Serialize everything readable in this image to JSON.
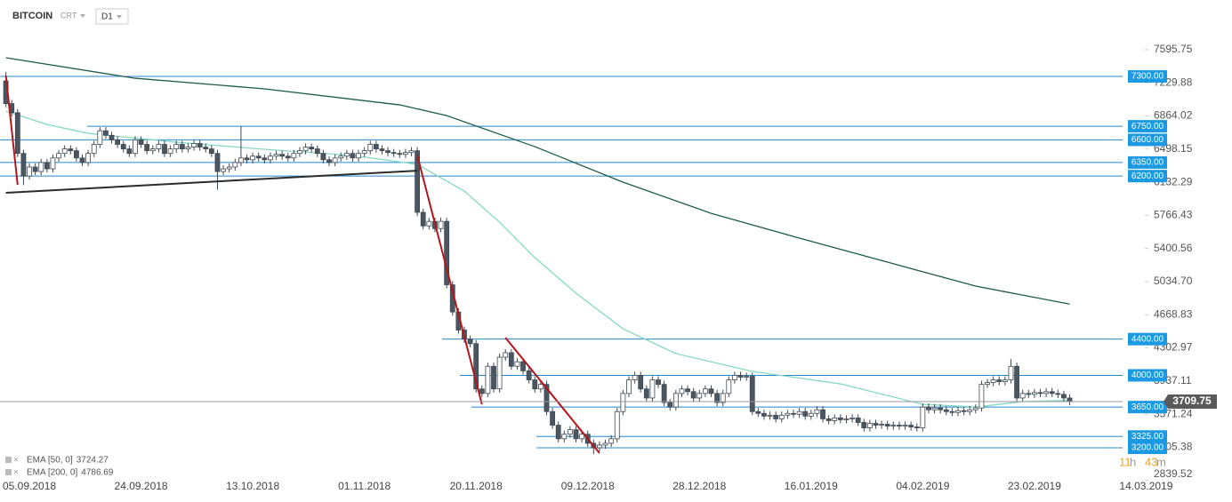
{
  "header": {
    "symbol": "BITCOIN",
    "account": "CRT",
    "timeframe": "D1"
  },
  "chart_data": {
    "type": "candlestick",
    "x": [
      "01.09.2018",
      "02.09.2018",
      "03.09.2018",
      "04.09.2018",
      "05.09.2018",
      "06.09.2018",
      "07.09.2018",
      "08.09.2018",
      "09.09.2018",
      "10.09.2018",
      "11.09.2018",
      "12.09.2018",
      "13.09.2018",
      "14.09.2018",
      "15.09.2018",
      "16.09.2018",
      "17.09.2018",
      "18.09.2018",
      "19.09.2018",
      "20.09.2018",
      "21.09.2018",
      "22.09.2018",
      "23.09.2018",
      "24.09.2018",
      "25.09.2018",
      "26.09.2018",
      "27.09.2018",
      "28.09.2018",
      "29.09.2018",
      "30.09.2018",
      "01.10.2018",
      "02.10.2018",
      "03.10.2018",
      "04.10.2018",
      "05.10.2018",
      "06.10.2018",
      "07.10.2018",
      "08.10.2018",
      "09.10.2018",
      "10.10.2018",
      "11.10.2018",
      "12.10.2018",
      "13.10.2018",
      "14.10.2018",
      "15.10.2018",
      "16.10.2018",
      "17.10.2018",
      "18.10.2018",
      "19.10.2018",
      "20.10.2018",
      "21.10.2018",
      "22.10.2018",
      "23.10.2018",
      "24.10.2018",
      "25.10.2018",
      "26.10.2018",
      "27.10.2018",
      "28.10.2018",
      "29.10.2018",
      "30.10.2018",
      "31.10.2018",
      "01.11.2018",
      "02.11.2018",
      "03.11.2018",
      "04.11.2018",
      "05.11.2018",
      "06.11.2018",
      "07.11.2018",
      "08.11.2018",
      "09.11.2018",
      "10.11.2018",
      "11.11.2018",
      "12.11.2018",
      "13.11.2018",
      "14.11.2018",
      "15.11.2018",
      "16.11.2018",
      "17.11.2018",
      "18.11.2018",
      "19.11.2018",
      "20.11.2018",
      "21.11.2018",
      "22.11.2018",
      "23.11.2018",
      "24.11.2018",
      "25.11.2018",
      "26.11.2018",
      "27.11.2018",
      "28.11.2018",
      "29.11.2018",
      "30.11.2018",
      "01.12.2018",
      "02.12.2018",
      "03.12.2018",
      "04.12.2018",
      "05.12.2018",
      "06.12.2018",
      "07.12.2018",
      "08.12.2018",
      "09.12.2018",
      "10.12.2018",
      "11.12.2018",
      "12.12.2018",
      "13.12.2018",
      "14.12.2018",
      "15.12.2018",
      "16.12.2018",
      "17.12.2018",
      "18.12.2018",
      "19.12.2018",
      "20.12.2018",
      "21.12.2018",
      "22.12.2018",
      "23.12.2018",
      "24.12.2018",
      "25.12.2018",
      "26.12.2018",
      "27.12.2018",
      "28.12.2018",
      "29.12.2018",
      "30.12.2018",
      "31.12.2018",
      "01.01.2019",
      "02.01.2019",
      "03.01.2019",
      "04.01.2019",
      "05.01.2019",
      "06.01.2019",
      "07.01.2019",
      "08.01.2019",
      "09.01.2019",
      "10.01.2019",
      "11.01.2019",
      "12.01.2019",
      "13.01.2019",
      "14.01.2019",
      "15.01.2019",
      "16.01.2019",
      "17.01.2019",
      "18.01.2019",
      "19.01.2019",
      "20.01.2019",
      "21.01.2019",
      "22.01.2019",
      "23.01.2019",
      "24.01.2019",
      "25.01.2019",
      "26.01.2019",
      "27.01.2019",
      "28.01.2019",
      "29.01.2019",
      "30.01.2019",
      "31.01.2019",
      "01.02.2019",
      "02.02.2019",
      "03.02.2019",
      "04.02.2019",
      "05.02.2019",
      "06.02.2019",
      "07.02.2019",
      "08.02.2019",
      "09.02.2019",
      "10.02.2019",
      "11.02.2019",
      "12.02.2019",
      "13.02.2019",
      "14.02.2019",
      "15.02.2019",
      "16.02.2019",
      "17.02.2019",
      "18.02.2019",
      "19.02.2019",
      "20.02.2019",
      "21.02.2019",
      "22.02.2019",
      "23.02.2019",
      "24.02.2019",
      "25.02.2019",
      "26.02.2019",
      "27.02.2019",
      "28.02.2019",
      "01.03.2019"
    ],
    "open": [
      7250,
      7000,
      6900,
      6450,
      6200,
      6300,
      6250,
      6350,
      6280,
      6400,
      6450,
      6500,
      6480,
      6400,
      6350,
      6450,
      6550,
      6700,
      6650,
      6600,
      6550,
      6500,
      6450,
      6600,
      6550,
      6480,
      6500,
      6550,
      6450,
      6500,
      6550,
      6500,
      6520,
      6560,
      6520,
      6500,
      6450,
      6250,
      6280,
      6300,
      6350,
      6400,
      6380,
      6420,
      6400,
      6380,
      6420,
      6440,
      6420,
      6400,
      6450,
      6480,
      6520,
      6500,
      6450,
      6380,
      6350,
      6400,
      6420,
      6450,
      6400,
      6450,
      6480,
      6550,
      6500,
      6480,
      6460,
      6450,
      6440,
      6460,
      6480,
      5800,
      5650,
      5700,
      5620,
      5700,
      5000,
      4700,
      4500,
      4400,
      4350,
      3850,
      3800,
      4100,
      3850,
      4200,
      4250,
      4100,
      4150,
      4050,
      3950,
      3850,
      3900,
      3600,
      3450,
      3300,
      3350,
      3400,
      3300,
      3350,
      3250,
      3200,
      3230,
      3250,
      3300,
      3600,
      3800,
      3950,
      4000,
      3850,
      3750,
      3950,
      3900,
      3700,
      3650,
      3800,
      3850,
      3820,
      3750,
      3800,
      3850,
      3800,
      3700,
      3800,
      3950,
      4000,
      3980,
      3990,
      3600,
      3580,
      3550,
      3560,
      3520,
      3560,
      3580,
      3570,
      3600,
      3550,
      3580,
      3620,
      3520,
      3500,
      3530,
      3510,
      3520,
      3530,
      3480,
      3420,
      3470,
      3450,
      3460,
      3440,
      3450,
      3440,
      3450,
      3430,
      3420,
      3650,
      3620,
      3640,
      3620,
      3600,
      3590,
      3610,
      3600,
      3620,
      3640,
      3900,
      3920,
      3950,
      3930,
      3950,
      4100,
      3750,
      3800,
      3790,
      3810,
      3800,
      3820,
      3800,
      3790,
      3750
    ],
    "high": [
      7350,
      7040,
      6940,
      6490,
      6340,
      6340,
      6390,
      6390,
      6440,
      6490,
      6540,
      6540,
      6520,
      6440,
      6490,
      6590,
      6740,
      6740,
      6690,
      6640,
      6590,
      6540,
      6640,
      6640,
      6590,
      6540,
      6590,
      6590,
      6540,
      6590,
      6590,
      6560,
      6600,
      6600,
      6560,
      6540,
      6490,
      6320,
      6340,
      6390,
      6750,
      6440,
      6460,
      6460,
      6440,
      6460,
      6480,
      6480,
      6460,
      6490,
      6520,
      6560,
      6560,
      6540,
      6490,
      6420,
      6440,
      6460,
      6490,
      6490,
      6490,
      6520,
      6590,
      6590,
      6540,
      6520,
      6500,
      6490,
      6500,
      6520,
      6520,
      5840,
      5740,
      5740,
      5740,
      5740,
      5040,
      4740,
      4540,
      4440,
      4390,
      3890,
      4140,
      4140,
      4240,
      4290,
      4290,
      4190,
      4190,
      4090,
      3990,
      3940,
      3940,
      3640,
      3490,
      3390,
      3440,
      3440,
      3390,
      3390,
      3290,
      3270,
      3290,
      3340,
      3640,
      3840,
      3990,
      4040,
      4040,
      3890,
      3990,
      3990,
      3940,
      3740,
      3840,
      3890,
      3890,
      3860,
      3840,
      3890,
      3890,
      3840,
      3840,
      3990,
      4040,
      4040,
      4030,
      4030,
      3640,
      3620,
      3600,
      3600,
      3600,
      3620,
      3620,
      3640,
      3640,
      3620,
      3660,
      3660,
      3560,
      3570,
      3570,
      3560,
      3570,
      3570,
      3520,
      3510,
      3510,
      3500,
      3500,
      3490,
      3490,
      3490,
      3490,
      3470,
      3690,
      3690,
      3680,
      3680,
      3660,
      3640,
      3650,
      3650,
      3660,
      3680,
      3940,
      3960,
      3990,
      3990,
      3990,
      4180,
      4140,
      3840,
      3840,
      3850,
      3850,
      3860,
      3860,
      3840,
      3830,
      3790
    ],
    "low": [
      6960,
      6860,
      6410,
      6100,
      6160,
      6210,
      6210,
      6240,
      6240,
      6360,
      6410,
      6440,
      6360,
      6310,
      6310,
      6410,
      6510,
      6610,
      6560,
      6510,
      6460,
      6410,
      6410,
      6510,
      6440,
      6440,
      6460,
      6410,
      6410,
      6460,
      6460,
      6460,
      6480,
      6480,
      6460,
      6410,
      6050,
      6210,
      6240,
      6260,
      6310,
      6340,
      6340,
      6360,
      6340,
      6340,
      6380,
      6380,
      6360,
      6360,
      6410,
      6440,
      6460,
      6410,
      6340,
      6310,
      6310,
      6360,
      6380,
      6360,
      6360,
      6410,
      6440,
      6460,
      6440,
      6420,
      6410,
      6400,
      6400,
      6420,
      5760,
      5610,
      5610,
      5580,
      5580,
      4960,
      4660,
      4460,
      4360,
      4310,
      3810,
      3760,
      3760,
      3810,
      3810,
      4160,
      4060,
      4060,
      4010,
      3910,
      3810,
      3810,
      3560,
      3410,
      3260,
      3260,
      3310,
      3260,
      3260,
      3210,
      3130,
      3160,
      3190,
      3210,
      3260,
      3560,
      3760,
      3910,
      3810,
      3710,
      3710,
      3860,
      3660,
      3610,
      3610,
      3760,
      3780,
      3710,
      3710,
      3760,
      3760,
      3660,
      3660,
      3760,
      3910,
      3940,
      3940,
      3560,
      3540,
      3510,
      3510,
      3480,
      3480,
      3520,
      3530,
      3530,
      3510,
      3510,
      3540,
      3480,
      3460,
      3460,
      3470,
      3470,
      3480,
      3440,
      3380,
      3380,
      3410,
      3410,
      3400,
      3400,
      3400,
      3400,
      3390,
      3380,
      3380,
      3580,
      3580,
      3580,
      3560,
      3550,
      3550,
      3560,
      3560,
      3580,
      3600,
      3860,
      3880,
      3890,
      3890,
      3910,
      3710,
      3710,
      3750,
      3750,
      3760,
      3760,
      3760,
      3750,
      3710,
      3670
    ],
    "close": [
      7000,
      6900,
      6450,
      6200,
      6300,
      6250,
      6350,
      6280,
      6400,
      6450,
      6500,
      6480,
      6400,
      6350,
      6450,
      6550,
      6700,
      6650,
      6600,
      6550,
      6500,
      6450,
      6600,
      6550,
      6480,
      6500,
      6550,
      6450,
      6500,
      6550,
      6500,
      6520,
      6560,
      6520,
      6500,
      6450,
      6250,
      6280,
      6300,
      6350,
      6400,
      6380,
      6420,
      6400,
      6380,
      6420,
      6440,
      6420,
      6400,
      6450,
      6480,
      6520,
      6500,
      6450,
      6380,
      6350,
      6400,
      6420,
      6450,
      6400,
      6450,
      6480,
      6550,
      6500,
      6480,
      6460,
      6450,
      6440,
      6460,
      6480,
      5800,
      5650,
      5700,
      5620,
      5700,
      5000,
      4700,
      4500,
      4400,
      4350,
      3850,
      3800,
      4100,
      3850,
      4200,
      4250,
      4100,
      4150,
      4050,
      3950,
      3850,
      3900,
      3600,
      3450,
      3300,
      3350,
      3400,
      3300,
      3350,
      3250,
      3200,
      3230,
      3250,
      3300,
      3600,
      3800,
      3950,
      4000,
      3850,
      3750,
      3950,
      3900,
      3700,
      3650,
      3800,
      3850,
      3820,
      3750,
      3800,
      3850,
      3800,
      3700,
      3800,
      3950,
      4000,
      3980,
      3990,
      3600,
      3580,
      3550,
      3560,
      3520,
      3560,
      3580,
      3570,
      3600,
      3550,
      3580,
      3620,
      3520,
      3500,
      3530,
      3510,
      3520,
      3530,
      3480,
      3420,
      3470,
      3450,
      3460,
      3440,
      3450,
      3440,
      3450,
      3430,
      3420,
      3650,
      3620,
      3640,
      3620,
      3600,
      3590,
      3610,
      3600,
      3620,
      3640,
      3900,
      3920,
      3950,
      3930,
      3950,
      4100,
      3750,
      3800,
      3790,
      3810,
      3800,
      3820,
      3800,
      3790,
      3750,
      3710
    ],
    "up_color": "#ffffff",
    "down_color": "#4b5661",
    "edge_color": "#3d4852",
    "xlim": [
      "31.08.2018",
      "10.03.2019"
    ],
    "xticks": [
      "05.09.2018",
      "24.09.2018",
      "13.10.2018",
      "01.11.2018",
      "20.11.2018",
      "09.12.2018",
      "28.12.2018",
      "16.01.2019",
      "04.02.2019",
      "23.02.2019",
      "14.03.2019"
    ],
    "ylim": [
      2798,
      8144
    ],
    "yticks": [
      7595.75,
      7229.88,
      6864.02,
      6498.15,
      6132.29,
      5766.43,
      5400.56,
      {
        "value": 5034.7,
        "label": "5034.70"
      },
      4668.83,
      4302.97,
      3937.11,
      3571.24,
      3205.38,
      2839.52
    ],
    "series": [
      {
        "name": "EMA [50, 0]",
        "legend_value": 3724.27,
        "color": "#86d8c4",
        "x": [
          "01.09.2018",
          "08.09.2018",
          "15.09.2018",
          "30.09.2018",
          "15.10.2018",
          "30.10.2018",
          "10.11.2018",
          "18.11.2018",
          "24.11.2018",
          "30.11.2018",
          "07.12.2018",
          "15.12.2018",
          "24.12.2018",
          "06.01.2019",
          "21.01.2019",
          "04.02.2019",
          "13.02.2019",
          "21.02.2019",
          "01.03.2019"
        ],
        "values": [
          6917,
          6770,
          6672,
          6574,
          6496,
          6427,
          6329,
          6035,
          5691,
          5299,
          4907,
          4514,
          4240,
          4044,
          3906,
          3680,
          3651,
          3710,
          3724
        ]
      },
      {
        "name": "EMA [200, 0]",
        "legend_value": 4786.69,
        "color": "#1e5c48",
        "x": [
          "01.09.2018",
          "23.09.2018",
          "15.10.2018",
          "07.11.2018",
          "15.11.2018",
          "30.11.2018",
          "15.12.2018",
          "30.12.2018",
          "14.01.2019",
          "29.01.2019",
          "13.02.2019",
          "01.03.2019"
        ],
        "values": [
          7506,
          7280,
          7163,
          6986,
          6868,
          6525,
          6133,
          5789,
          5515,
          5250,
          4985,
          4787
        ]
      }
    ],
    "levels": [
      {
        "value": 7300,
        "label": "7300.00"
      },
      {
        "value": 6750,
        "label": "6750.00"
      },
      {
        "value": 6600,
        "label": "6600.00"
      },
      {
        "value": 6350,
        "label": "6350.00"
      },
      {
        "value": 6200,
        "label": "6200.00"
      },
      {
        "value": 4400,
        "label": "4400.00"
      },
      {
        "value": 4000,
        "label": "4000.00"
      },
      {
        "value": 3650,
        "label": "3650.00"
      },
      {
        "value": 3325,
        "label": "3325.00"
      },
      {
        "value": 3200,
        "label": "3200.00"
      }
    ],
    "level_color": "#2289cc",
    "last_price": 3709.75,
    "trendlines": [
      {
        "color": "#b3161b",
        "x": [
          "01.09.2018",
          "03.09.2018"
        ],
        "y": [
          7310,
          6103
        ]
      },
      {
        "color": "#2b2b2b",
        "x": [
          "01.09.2018",
          "10.11.2018"
        ],
        "y": [
          6015,
          6260
        ]
      },
      {
        "color": "#b3161b",
        "x": [
          "10.11.2018",
          "21.11.2018"
        ],
        "y": [
          6427,
          3680
        ]
      },
      {
        "color": "#b3161b",
        "x": [
          "25.11.2018",
          "11.12.2018"
        ],
        "y": [
          4416,
          3141
        ]
      }
    ],
    "countdown": {
      "hours": "11",
      "h": "h",
      "minutes": "43",
      "m": "m"
    }
  }
}
